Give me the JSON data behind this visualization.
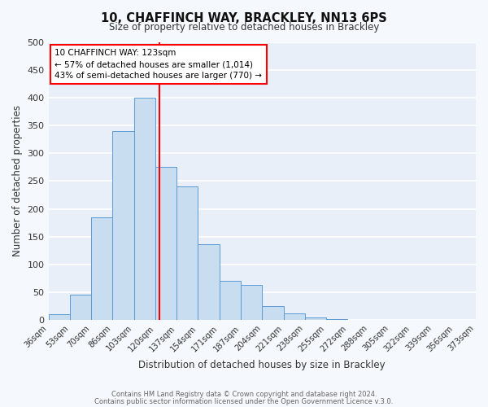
{
  "title": "10, CHAFFINCH WAY, BRACKLEY, NN13 6PS",
  "subtitle": "Size of property relative to detached houses in Brackley",
  "xlabel": "Distribution of detached houses by size in Brackley",
  "ylabel": "Number of detached properties",
  "bar_color": "#c9ddf0",
  "bar_edge_color": "#5b9bd5",
  "bar_centers": [
    0,
    1,
    2,
    3,
    4,
    5,
    6,
    7,
    8,
    9,
    10,
    11,
    12,
    13,
    14,
    15,
    16,
    17,
    18,
    19
  ],
  "bin_labels": [
    "36sqm",
    "53sqm",
    "70sqm",
    "86sqm",
    "103sqm",
    "120sqm",
    "137sqm",
    "154sqm",
    "171sqm",
    "187sqm",
    "204sqm",
    "221sqm",
    "238sqm",
    "255sqm",
    "272sqm",
    "288sqm",
    "305sqm",
    "322sqm",
    "339sqm",
    "356sqm",
    "373sqm"
  ],
  "values": [
    10,
    45,
    185,
    340,
    400,
    275,
    240,
    137,
    70,
    63,
    25,
    12,
    5,
    2,
    1,
    1,
    1,
    1,
    0,
    1
  ],
  "vline_x": 4.71,
  "vline_color": "red",
  "ylim": [
    0,
    500
  ],
  "yticks": [
    0,
    50,
    100,
    150,
    200,
    250,
    300,
    350,
    400,
    450,
    500
  ],
  "annotation_title": "10 CHAFFINCH WAY: 123sqm",
  "annotation_line1": "← 57% of detached houses are smaller (1,014)",
  "annotation_line2": "43% of semi-detached houses are larger (770) →",
  "annotation_box_color": "white",
  "annotation_box_edge_color": "red",
  "footer_line1": "Contains HM Land Registry data © Crown copyright and database right 2024.",
  "footer_line2": "Contains public sector information licensed under the Open Government Licence v.3.0.",
  "plot_bg_color": "#e8eff8",
  "fig_bg_color": "#f5f8fc",
  "grid_color": "white",
  "spine_color": "#cccccc"
}
